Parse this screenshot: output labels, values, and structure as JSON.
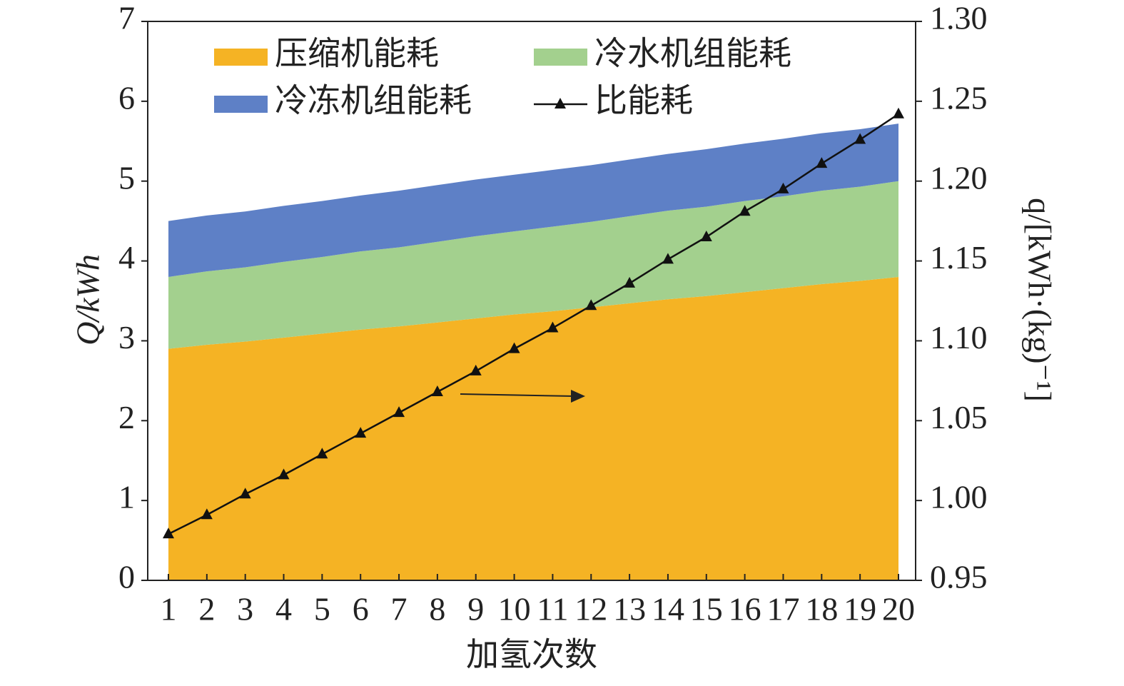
{
  "chart_data": {
    "type": "stacked_area_line",
    "xlabel": "加氢次数",
    "ylabel": "Q/kWh",
    "y2label": "q/[kWh·(kg)⁻¹]",
    "categories": [
      "1",
      "2",
      "3",
      "4",
      "5",
      "6",
      "7",
      "8",
      "9",
      "10",
      "11",
      "12",
      "13",
      "14",
      "15",
      "16",
      "17",
      "18",
      "19",
      "20"
    ],
    "series": [
      {
        "name": "压缩机能耗",
        "kind": "area",
        "color": "#f5b324",
        "values": [
          2.9,
          2.95,
          2.99,
          3.04,
          3.09,
          3.14,
          3.18,
          3.23,
          3.28,
          3.33,
          3.37,
          3.42,
          3.47,
          3.52,
          3.56,
          3.61,
          3.66,
          3.71,
          3.75,
          3.8
        ]
      },
      {
        "name": "冷水机组能耗",
        "kind": "area",
        "color": "#a3d08e",
        "values": [
          0.9,
          0.92,
          0.93,
          0.95,
          0.96,
          0.98,
          0.99,
          1.01,
          1.03,
          1.04,
          1.06,
          1.07,
          1.09,
          1.11,
          1.12,
          1.14,
          1.15,
          1.17,
          1.18,
          1.2
        ]
      },
      {
        "name": "冷冻机组能耗",
        "kind": "area",
        "color": "#5e80c6",
        "values": [
          0.7,
          0.7,
          0.7,
          0.7,
          0.7,
          0.7,
          0.71,
          0.71,
          0.71,
          0.71,
          0.71,
          0.71,
          0.71,
          0.71,
          0.72,
          0.72,
          0.72,
          0.72,
          0.72,
          0.72
        ]
      },
      {
        "name": "比能耗",
        "kind": "line",
        "axis": "y2",
        "color": "#111111",
        "values": [
          0.979,
          0.991,
          1.004,
          1.016,
          1.029,
          1.042,
          1.055,
          1.068,
          1.081,
          1.095,
          1.108,
          1.122,
          1.136,
          1.151,
          1.165,
          1.181,
          1.195,
          1.211,
          1.226,
          1.242
        ]
      }
    ],
    "ylim": [
      0,
      7
    ],
    "yticks": [
      0,
      1,
      2,
      3,
      4,
      5,
      6,
      7
    ],
    "y2lim": [
      0.95,
      1.3
    ],
    "y2ticks": [
      0.95,
      {
        "value": 1.0,
        "label": "1.00"
      },
      1.05,
      {
        "value": 1.1,
        "label": "1.10"
      },
      1.15,
      {
        "value": 1.2,
        "label": "1.20"
      },
      1.25,
      {
        "value": 1.3,
        "label": "1.30"
      }
    ],
    "legend": "upper left"
  }
}
